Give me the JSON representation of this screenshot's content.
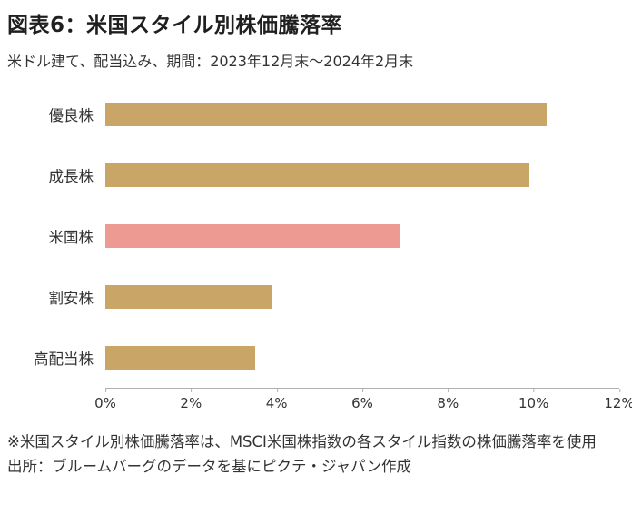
{
  "title": "図表6：米国スタイル別株価騰落率",
  "subtitle": "米ドル建て、配当込み、期間：2023年12月末～2024年2月末",
  "chart_data": {
    "type": "bar",
    "orientation": "horizontal",
    "categories": [
      "優良株",
      "成長株",
      "米国株",
      "割安株",
      "高配当株"
    ],
    "values": [
      10.3,
      9.9,
      6.9,
      3.9,
      3.5
    ],
    "unit": "%",
    "highlight_index": 2,
    "bar_color": "#c9a567",
    "highlight_color": "#ec9a92",
    "xlim": [
      0,
      12
    ],
    "x_ticks": [
      "0%",
      "2%",
      "4%",
      "6%",
      "8%",
      "10%",
      "12%"
    ],
    "grid": false,
    "axis_line_color": "#b0b0b0",
    "legend": "none"
  },
  "footnote": "※米国スタイル別株価騰落率は、MSCI米国株指数の各スタイル指数の株価騰落率を使用",
  "source": "出所：ブルームバーグのデータを基にピクテ・ジャパン作成"
}
